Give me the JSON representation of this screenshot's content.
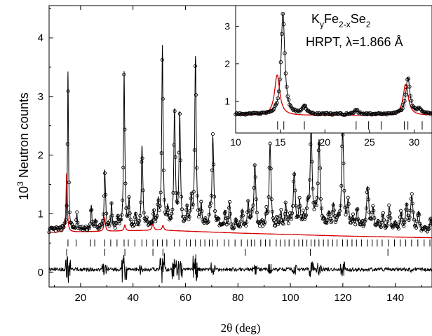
{
  "chart_data": [
    {
      "type": "line",
      "title": "",
      "xlabel": "2θ (deg)",
      "ylabel_pre": "10",
      "ylabel_sup": "3",
      "ylabel_post": " Neutron counts",
      "xlim": [
        8,
        154
      ],
      "ylim": [
        -0.25,
        4.55
      ],
      "x_ticks": [
        20,
        40,
        60,
        80,
        100,
        120,
        140
      ],
      "y_ticks": [
        0,
        1,
        2,
        3,
        4
      ],
      "peaks_observed": [
        {
          "x": 15.2,
          "y": 3.38
        },
        {
          "x": 29.2,
          "y": 1.62
        },
        {
          "x": 36.6,
          "y": 3.27
        },
        {
          "x": 43.4,
          "y": 1.97
        },
        {
          "x": 51.2,
          "y": 3.76
        },
        {
          "x": 55.8,
          "y": 2.5
        },
        {
          "x": 57.8,
          "y": 2.57
        },
        {
          "x": 63.8,
          "y": 3.52
        },
        {
          "x": 70.4,
          "y": 2.05
        },
        {
          "x": 86.4,
          "y": 1.55
        },
        {
          "x": 92.2,
          "y": 1.88
        },
        {
          "x": 101.4,
          "y": 1.42
        },
        {
          "x": 107.9,
          "y": 2.38
        },
        {
          "x": 110.9,
          "y": 1.9
        },
        {
          "x": 119.9,
          "y": 2.12
        },
        {
          "x": 129.4,
          "y": 1.22
        },
        {
          "x": 146.2,
          "y": 1.08
        }
      ],
      "red_phase_peaks": [
        {
          "x": 14.7,
          "y": 1.73
        },
        {
          "x": 29.2,
          "y": 0.98
        },
        {
          "x": 36.9,
          "y": 0.85
        },
        {
          "x": 47.6,
          "y": 0.88
        },
        {
          "x": 51.4,
          "y": 0.84
        }
      ],
      "baseline": [
        [
          8,
          0.72
        ],
        [
          50,
          0.76
        ],
        [
          80,
          0.71
        ],
        [
          120,
          0.66
        ],
        [
          154,
          0.63
        ]
      ],
      "reflection_rows": [
        {
          "y": 0.5,
          "positions": [
            15.2,
            18.3,
            23.8,
            25.4,
            29.2,
            31.5,
            33.9,
            36.6,
            38.2,
            40.7,
            43.4,
            45.1,
            47.6,
            49.3,
            51.2,
            52.9,
            55.8,
            57.8,
            60.3,
            61.9,
            63.8,
            65.7,
            67.4,
            69.1,
            70.4,
            72.2,
            74.8,
            76.5,
            78.9,
            81.3,
            83.6,
            85.1,
            86.4,
            88.7,
            90.5,
            92.2,
            94.6,
            96.1,
            97.9,
            99.5,
            101.4,
            103.2,
            104.7,
            106.3,
            107.9,
            109.3,
            110.9,
            112.6,
            114.4,
            116.1,
            117.8,
            119.9,
            121.7,
            123.5,
            125.2,
            127.1,
            129.4,
            131.2,
            133.1,
            135.0,
            137.4,
            139.7,
            141.9,
            144.0,
            146.2,
            148.6,
            151.0,
            153.2
          ]
        },
        {
          "y": 0.34,
          "positions": [
            14.7,
            29.2,
            36.9,
            47.6,
            51.4,
            82.8,
            107.6,
            137.2
          ]
        }
      ],
      "difference_baseline": 0.05
    },
    {
      "type": "line",
      "xlim": [
        10,
        32
      ],
      "ylim": [
        0.15,
        3.55
      ],
      "x_ticks": [
        10,
        15,
        20,
        25,
        30
      ],
      "y_ticks": [
        1,
        2,
        3
      ],
      "observed_peaks": [
        {
          "x": 15.3,
          "y": 3.35
        },
        {
          "x": 17.7,
          "y": 0.88
        },
        {
          "x": 23.5,
          "y": 0.77
        },
        {
          "x": 29.3,
          "y": 1.62
        },
        {
          "x": 30.6,
          "y": 0.78
        }
      ],
      "red_peaks": [
        {
          "x": 14.65,
          "y": 1.73
        },
        {
          "x": 29.05,
          "y": 1.48
        }
      ],
      "baseline_level": 0.65,
      "reflection_ticks": [
        14.7,
        15.4,
        17.7,
        23.5,
        24.9,
        26.3,
        28.9,
        29.3,
        30.9
      ]
    }
  ],
  "inset_labels": {
    "formula_k": "K",
    "formula_y": "y",
    "formula_fe": "Fe",
    "formula_2x": "2-x",
    "formula_se": "Se",
    "formula_2": "2",
    "instrument": "HRPT, λ=1.866 Å"
  },
  "colors": {
    "observed": "#000000",
    "calculated": "#000000",
    "secondary_phase": "#d40000",
    "axis": "#000000"
  }
}
